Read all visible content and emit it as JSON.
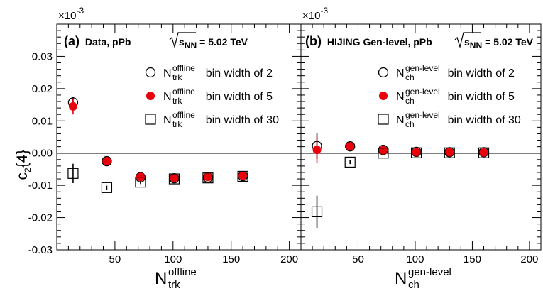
{
  "chart_data": [
    {
      "type": "scatter",
      "panel_label": "(a)",
      "title": "Data, pPb",
      "energy_symbol": "s",
      "energy_sub": "NN",
      "energy_value": "= 5.02 TeV",
      "scale_note": "×10",
      "scale_exp": "-3",
      "ylabel_main": "c",
      "ylabel_sub": "2",
      "ylabel_suffix": "{4}",
      "xlabel_main": "N",
      "xlabel_sup": "offline",
      "xlabel_sub": "trk",
      "xlim": [
        0,
        210
      ],
      "ylim": [
        -0.03,
        0.04
      ],
      "x_ticks": [
        "50",
        "100",
        "150",
        "200"
      ],
      "y_ticks": [
        "-0.03",
        "-0.02",
        "-0.01",
        "0.00",
        "0.01",
        "0.02",
        "0.03"
      ],
      "series": [
        {
          "marker": "open-circle",
          "legend_main": "N",
          "legend_sup": "offline",
          "legend_sub": "trk",
          "legend_text": "bin width of 2",
          "points": [
            {
              "x": 14,
              "y": 0.0157,
              "err": 0.0018
            },
            {
              "x": 43,
              "y": -0.0025,
              "err": 0.0006
            },
            {
              "x": 72,
              "y": -0.0075,
              "err": 0.0006
            },
            {
              "x": 101,
              "y": -0.0078,
              "err": 0.0008
            },
            {
              "x": 130,
              "y": -0.0076,
              "err": 0.0008
            },
            {
              "x": 160,
              "y": -0.0071,
              "err": 0.0008
            }
          ]
        },
        {
          "marker": "filled-circle",
          "color": "#e8000b",
          "legend_main": "N",
          "legend_sup": "offline",
          "legend_sub": "trk",
          "legend_text": "bin width of 5",
          "points": [
            {
              "x": 14,
              "y": 0.0145,
              "err": 0.0025
            },
            {
              "x": 43,
              "y": -0.0025,
              "err": 0.0006
            },
            {
              "x": 72,
              "y": -0.0074,
              "err": 0.0006
            },
            {
              "x": 101,
              "y": -0.0077,
              "err": 0.0008
            },
            {
              "x": 130,
              "y": -0.0074,
              "err": 0.0008
            },
            {
              "x": 160,
              "y": -0.007,
              "err": 0.0008
            }
          ]
        },
        {
          "marker": "open-square",
          "legend_main": "N",
          "legend_sup": "offline",
          "legend_sub": "trk",
          "legend_text": "bin width of 30",
          "points": [
            {
              "x": 14,
              "y": -0.0063,
              "err": 0.003
            },
            {
              "x": 43,
              "y": -0.0107,
              "err": 0.0006
            },
            {
              "x": 72,
              "y": -0.009,
              "err": 0.0006
            },
            {
              "x": 101,
              "y": -0.008,
              "err": 0.0008
            },
            {
              "x": 130,
              "y": -0.0077,
              "err": 0.0008
            },
            {
              "x": 160,
              "y": -0.0072,
              "err": 0.0008
            }
          ]
        }
      ]
    },
    {
      "type": "scatter",
      "panel_label": "(b)",
      "title": "HIJING Gen-level, pPb",
      "energy_symbol": "s",
      "energy_sub": "NN",
      "energy_value": "= 5.02 TeV",
      "scale_note": "×10",
      "scale_exp": "-3",
      "xlabel_main": "N",
      "xlabel_sup": "gen-level",
      "xlabel_sub": "ch",
      "xlim": [
        0,
        210
      ],
      "ylim": [
        -0.03,
        0.04
      ],
      "x_ticks": [
        "50",
        "100",
        "150",
        "200"
      ],
      "series": [
        {
          "marker": "open-circle",
          "legend_main": "N",
          "legend_sup": "gen-level",
          "legend_sub": "ch",
          "legend_text": "bin width of 2",
          "points": [
            {
              "x": 14,
              "y": 0.0022,
              "err": 0.004
            },
            {
              "x": 43,
              "y": 0.0021,
              "err": 0.0006
            },
            {
              "x": 72,
              "y": 0.001,
              "err": 0.0006
            },
            {
              "x": 101,
              "y": 0.0004,
              "err": 0.0008
            },
            {
              "x": 130,
              "y": 0.0003,
              "err": 0.0008
            },
            {
              "x": 160,
              "y": 0.0003,
              "err": 0.0008
            }
          ]
        },
        {
          "marker": "filled-circle",
          "color": "#e8000b",
          "legend_main": "N",
          "legend_sup": "gen-level",
          "legend_sub": "ch",
          "legend_text": "bin width of 5",
          "points": [
            {
              "x": 14,
              "y": 0.001,
              "err": 0.004
            },
            {
              "x": 43,
              "y": 0.0021,
              "err": 0.0006
            },
            {
              "x": 72,
              "y": 0.0009,
              "err": 0.0006
            },
            {
              "x": 101,
              "y": 0.0003,
              "err": 0.0008
            },
            {
              "x": 130,
              "y": 0.0003,
              "err": 0.0008
            },
            {
              "x": 160,
              "y": 0.0002,
              "err": 0.0008
            }
          ]
        },
        {
          "marker": "open-square",
          "legend_main": "N",
          "legend_sup": "gen-level",
          "legend_sub": "ch",
          "legend_text": "bin width of 30",
          "points": [
            {
              "x": 14,
              "y": -0.0182,
              "err": 0.005
            },
            {
              "x": 43,
              "y": -0.0028,
              "err": 0.0006
            },
            {
              "x": 72,
              "y": 0.0,
              "err": 0.0006
            },
            {
              "x": 101,
              "y": 0.0001,
              "err": 0.0008
            },
            {
              "x": 130,
              "y": 0.0001,
              "err": 0.0008
            },
            {
              "x": 160,
              "y": 0.0001,
              "err": 0.0008
            }
          ]
        }
      ]
    }
  ]
}
